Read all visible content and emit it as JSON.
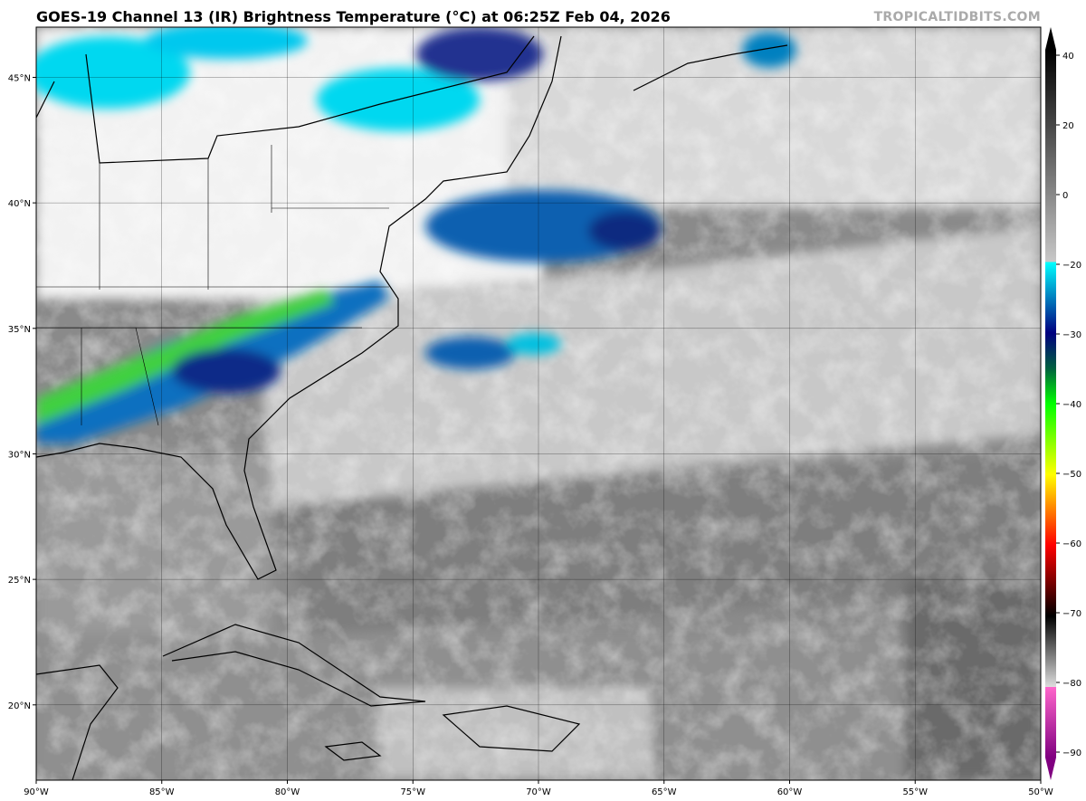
{
  "header": {
    "title": "GOES-19 Channel 13 (IR) Brightness Temperature (°C) at 06:25Z Feb 04, 2026",
    "watermark": "TROPICALTIDBITS.COM"
  },
  "map": {
    "projection": "equirectangular",
    "lon_range": [
      -90,
      -50
    ],
    "lat_range": [
      17,
      47
    ],
    "grid": true,
    "lon_ticks": [
      {
        "value": -90,
        "label": "90°W"
      },
      {
        "value": -85,
        "label": "85°W"
      },
      {
        "value": -80,
        "label": "80°W"
      },
      {
        "value": -75,
        "label": "75°W"
      },
      {
        "value": -70,
        "label": "70°W"
      },
      {
        "value": -65,
        "label": "65°W"
      },
      {
        "value": -60,
        "label": "60°W"
      },
      {
        "value": -55,
        "label": "55°W"
      },
      {
        "value": -50,
        "label": "50°W"
      }
    ],
    "lat_ticks": [
      {
        "value": 20,
        "label": "20°N"
      },
      {
        "value": 25,
        "label": "25°N"
      },
      {
        "value": 30,
        "label": "30°N"
      },
      {
        "value": 35,
        "label": "35°N"
      },
      {
        "value": 40,
        "label": "40°N"
      },
      {
        "value": 45,
        "label": "45°N"
      }
    ]
  },
  "colorbar": {
    "orientation": "vertical",
    "range": [
      -90,
      40
    ],
    "extend": "both",
    "ticks": [
      {
        "value": 40,
        "label": "40"
      },
      {
        "value": 20,
        "label": "20"
      },
      {
        "value": 0,
        "label": "0"
      },
      {
        "value": -20,
        "label": "−20"
      },
      {
        "value": -30,
        "label": "−30"
      },
      {
        "value": -40,
        "label": "−40"
      },
      {
        "value": -50,
        "label": "−50"
      },
      {
        "value": -60,
        "label": "−60"
      },
      {
        "value": -70,
        "label": "−70"
      },
      {
        "value": -80,
        "label": "−80"
      },
      {
        "value": -90,
        "label": "−90"
      }
    ],
    "stops": [
      {
        "value": 40,
        "color": "#000000"
      },
      {
        "value": -20,
        "color": "#ffffff"
      },
      {
        "value": -20.01,
        "color": "#00ffff"
      },
      {
        "value": -30,
        "color": "#000080"
      },
      {
        "value": -35,
        "color": "#006040"
      },
      {
        "value": -40,
        "color": "#00ff00"
      },
      {
        "value": -50,
        "color": "#ffff00"
      },
      {
        "value": -60,
        "color": "#ff0000"
      },
      {
        "value": -70,
        "color": "#000000"
      },
      {
        "value": -79.99,
        "color": "#d0d0d0"
      },
      {
        "value": -80,
        "color": "#ff66cc"
      },
      {
        "value": -90,
        "color": "#800080"
      }
    ]
  }
}
